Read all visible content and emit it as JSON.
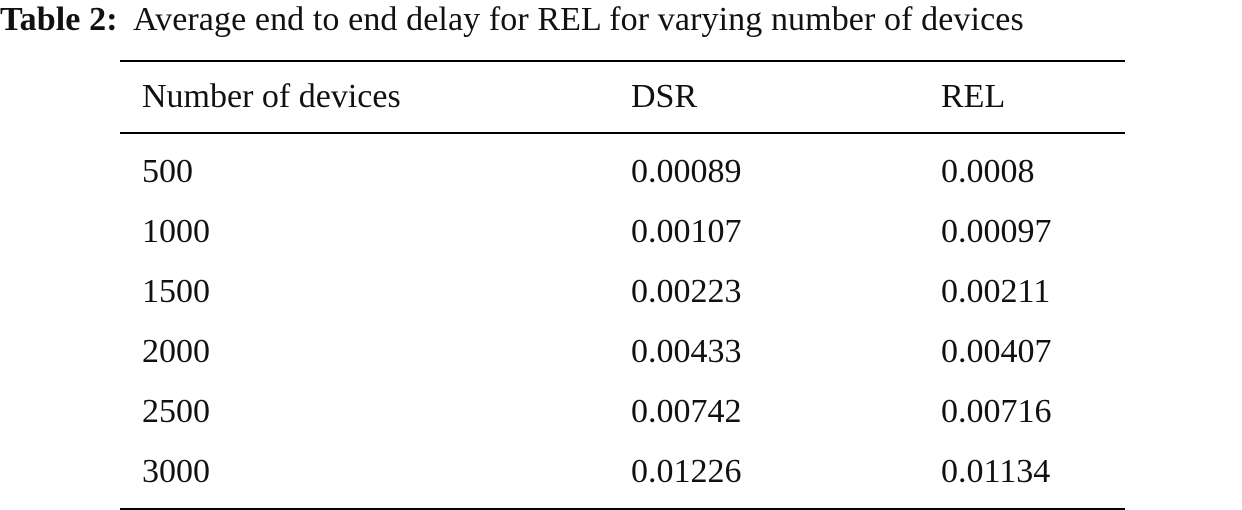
{
  "caption": {
    "label": "Table 2:",
    "text": "Average end to end delay for REL for varying number of devices"
  },
  "table": {
    "headers": [
      "Number of devices",
      "DSR",
      "REL"
    ],
    "rows": [
      [
        "500",
        "0.00089",
        "0.0008"
      ],
      [
        "1000",
        "0.00107",
        "0.00097"
      ],
      [
        "1500",
        "0.00223",
        "0.00211"
      ],
      [
        "2000",
        "0.00433",
        "0.00407"
      ],
      [
        "2500",
        "0.00742",
        "0.00716"
      ],
      [
        "3000",
        "0.01226",
        "0.01134"
      ]
    ]
  }
}
